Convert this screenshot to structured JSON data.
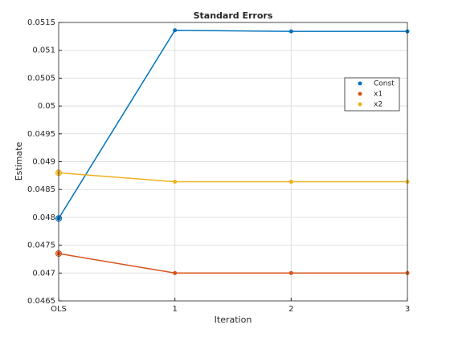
{
  "chart_data": {
    "type": "line",
    "title": "Standard Errors",
    "xlabel": "Iteration",
    "ylabel": "Estimate",
    "x": [
      0,
      1,
      2,
      3
    ],
    "series": [
      {
        "name": "Const",
        "color": "#0072bd",
        "values": [
          0.04798,
          0.05136,
          0.05134,
          0.05134
        ]
      },
      {
        "name": "x1",
        "color": "#d95319",
        "values": [
          0.04735,
          0.047,
          0.047,
          0.047
        ]
      },
      {
        "name": "x2",
        "color": "#edb120",
        "values": [
          0.0488,
          0.04864,
          0.04864,
          0.04864
        ]
      }
    ],
    "xlim": [
      0,
      3
    ],
    "xticks": [
      {
        "value": 0,
        "label": "OLS"
      },
      1,
      2,
      3
    ],
    "ylim": [
      0.0465,
      0.0515
    ],
    "yticks": [
      0.0465,
      0.047,
      0.0475,
      0.048,
      0.0485,
      0.049,
      0.0495,
      0.05,
      0.0505,
      0.051,
      0.0515
    ],
    "grid": true,
    "legend": "right"
  }
}
